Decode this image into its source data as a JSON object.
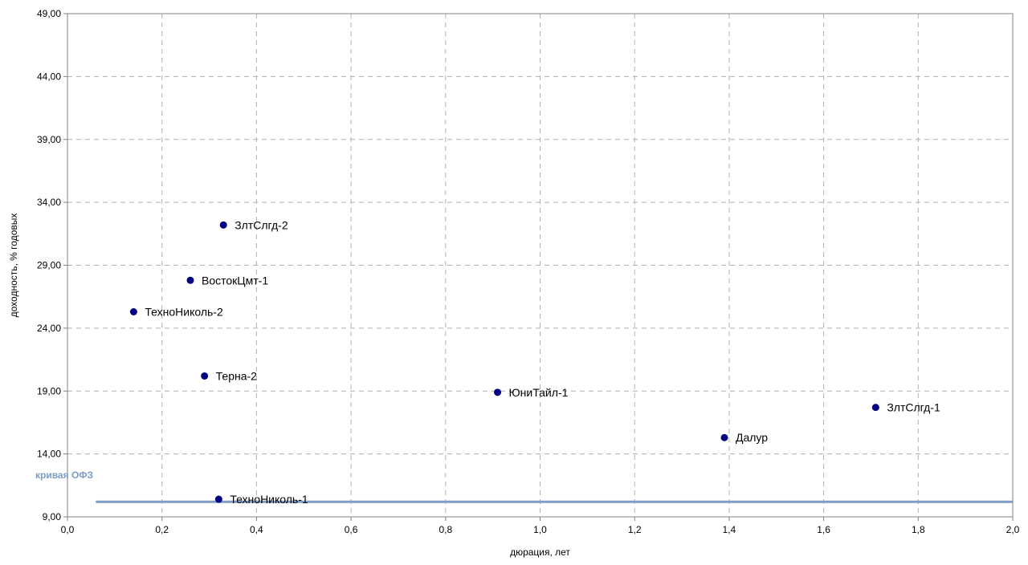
{
  "chart_data": {
    "type": "scatter",
    "xlabel": "дюрация, лет",
    "ylabel": "доходность, % годовых",
    "xlim": [
      0,
      2
    ],
    "ylim": [
      9,
      49
    ],
    "x_ticks": [
      "0,0",
      "0,2",
      "0,4",
      "0,6",
      "0,8",
      "1,0",
      "1,2",
      "1,4",
      "1,6",
      "1,8",
      "2,0"
    ],
    "y_ticks": [
      "9,00",
      "14,00",
      "19,00",
      "24,00",
      "29,00",
      "34,00",
      "39,00",
      "44,00",
      "49,00"
    ],
    "grid": true,
    "points": [
      {
        "label": "ЗлтСлгд-2",
        "x": 0.33,
        "y": 32.2
      },
      {
        "label": "ВостокЦмт-1",
        "x": 0.26,
        "y": 27.8
      },
      {
        "label": "ТехноНиколь-2",
        "x": 0.14,
        "y": 25.3
      },
      {
        "label": "Терна-2",
        "x": 0.29,
        "y": 20.2
      },
      {
        "label": "ЮниТайл-1",
        "x": 0.91,
        "y": 18.9
      },
      {
        "label": "ЗлтСлгд-1",
        "x": 1.71,
        "y": 17.7
      },
      {
        "label": "Далур",
        "x": 1.39,
        "y": 15.3
      },
      {
        "label": "ТехноНиколь-1",
        "x": 0.32,
        "y": 10.4
      }
    ],
    "curve": {
      "name": "кривая ОФЗ",
      "x": [
        0.06,
        2.0
      ],
      "y": [
        10.2,
        10.2
      ],
      "color": "#7a9cc6"
    },
    "point_color": "#000080"
  }
}
